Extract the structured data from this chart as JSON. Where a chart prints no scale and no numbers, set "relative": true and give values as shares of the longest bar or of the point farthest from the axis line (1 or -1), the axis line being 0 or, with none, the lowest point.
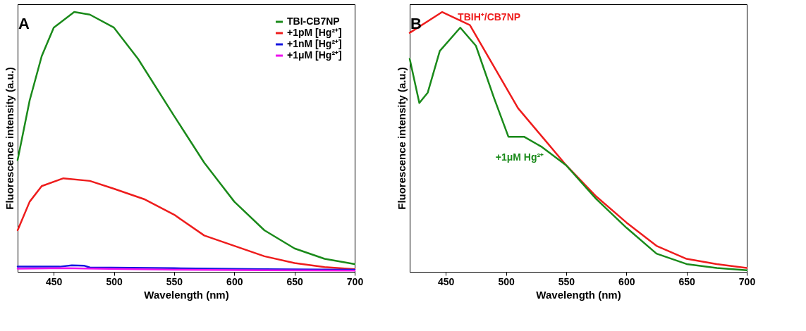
{
  "chart_data": [
    {
      "type": "line",
      "title": "A",
      "xlabel": "Wavelength (nm)",
      "ylabel": "Fluorescence intensity (a.u.)",
      "relative": true,
      "xlim": [
        420,
        700
      ],
      "xticks": [
        450,
        500,
        550,
        600,
        650,
        700
      ],
      "legend": "top right",
      "grid": false,
      "series": [
        {
          "name": "TBI-CB7NP",
          "color": "#1a8a1a",
          "x": [
            420,
            430,
            440,
            450,
            467,
            480,
            500,
            520,
            550,
            575,
            600,
            625,
            650,
            675,
            700
          ],
          "values": [
            0.43,
            0.66,
            0.83,
            0.94,
            1.0,
            0.99,
            0.94,
            0.82,
            0.6,
            0.42,
            0.27,
            0.16,
            0.09,
            0.05,
            0.03
          ]
        },
        {
          "name": "+1pM [Hg²⁺]",
          "color": "#ee1c1c",
          "x": [
            420,
            430,
            440,
            458,
            480,
            500,
            525,
            550,
            575,
            600,
            625,
            650,
            675,
            700
          ],
          "values": [
            0.16,
            0.27,
            0.33,
            0.36,
            0.35,
            0.32,
            0.28,
            0.22,
            0.14,
            0.1,
            0.06,
            0.034,
            0.018,
            0.01
          ]
        },
        {
          "name": "+1nM [Hg²⁺]",
          "color": "#1515e0",
          "x": [
            420,
            455,
            465,
            475,
            480,
            550,
            625,
            700
          ],
          "values": [
            0.02,
            0.02,
            0.025,
            0.024,
            0.017,
            0.014,
            0.01,
            0.008
          ]
        },
        {
          "name": "+1μM [Hg²⁺]",
          "color": "#ee10ee",
          "x": [
            420,
            460,
            475,
            550,
            625,
            700
          ],
          "values": [
            0.012,
            0.014,
            0.013,
            0.008,
            0.006,
            0.005
          ]
        }
      ]
    },
    {
      "type": "line",
      "title": "B",
      "xlabel": "Wavelength (nm)",
      "ylabel": "Fluorescence intensity (a.u.)",
      "relative": true,
      "xlim": [
        420,
        700
      ],
      "xticks": [
        450,
        500,
        550,
        600,
        650,
        700
      ],
      "legend": false,
      "grid": false,
      "series": [
        {
          "name": "TBIH⁺/CB7NP",
          "color": "#ee1c1c",
          "x": [
            420,
            447,
            470,
            490,
            510,
            530,
            550,
            575,
            600,
            625,
            650,
            675,
            700
          ],
          "values": [
            0.92,
            1.0,
            0.95,
            0.79,
            0.63,
            0.52,
            0.41,
            0.29,
            0.19,
            0.1,
            0.05,
            0.03,
            0.015
          ]
        },
        {
          "name": "+1μM Hg²⁺",
          "color": "#1a8a1a",
          "x": [
            420,
            428,
            435,
            445,
            462,
            475,
            490,
            502,
            515,
            530,
            550,
            575,
            600,
            625,
            650,
            675,
            700
          ],
          "values": [
            0.82,
            0.65,
            0.69,
            0.85,
            0.94,
            0.87,
            0.67,
            0.52,
            0.52,
            0.48,
            0.41,
            0.28,
            0.17,
            0.07,
            0.03,
            0.015,
            0.006
          ]
        }
      ]
    }
  ]
}
